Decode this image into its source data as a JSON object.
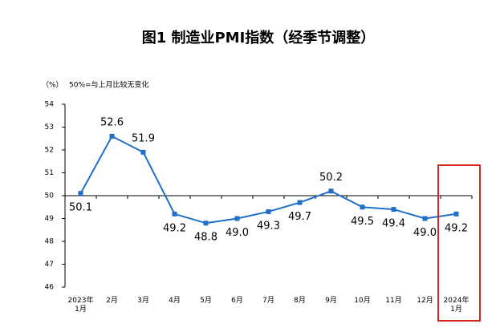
{
  "chart_data": {
    "type": "line",
    "title": "图1 制造业PMI指数（经季节调整）",
    "y_unit": "（%）",
    "annotation": "50%=与上月比较无变化",
    "categories": [
      "2023年\n1月",
      "2月",
      "3月",
      "4月",
      "5月",
      "6月",
      "7月",
      "8月",
      "9月",
      "10月",
      "11月",
      "12月",
      "2024年\n1月"
    ],
    "series": [
      {
        "name": "制造业PMI",
        "color": "#1f6fc8",
        "values": [
          50.1,
          52.6,
          51.9,
          49.2,
          48.8,
          49.0,
          49.3,
          49.7,
          50.2,
          49.5,
          49.4,
          49.0,
          49.2
        ],
        "value_labels": [
          "50.1",
          "52.6",
          "51.9",
          "49.2",
          "48.8",
          "49.0",
          "49.3",
          "49.7",
          "50.2",
          "49.5",
          "49.4",
          "49.0",
          "49.2"
        ],
        "label_position": [
          "below",
          "above",
          "above",
          "below",
          "below",
          "below",
          "below",
          "below",
          "above",
          "below",
          "below",
          "below",
          "below"
        ]
      }
    ],
    "ylim": [
      46,
      54
    ],
    "yticks": [
      46,
      47,
      48,
      49,
      50,
      51,
      52,
      53,
      54
    ],
    "xaxis_crossing": 50,
    "highlight_color": "#d9261c"
  }
}
